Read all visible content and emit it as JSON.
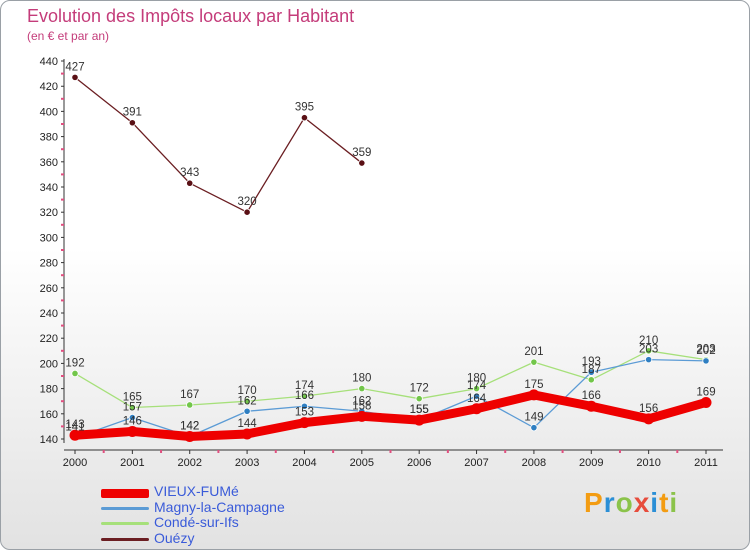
{
  "chart_data": {
    "type": "line",
    "title": "Evolution des Impôts locaux par Habitant",
    "subtitle": "(en € et par an)",
    "xlabel": "",
    "ylabel": "",
    "ylim": [
      140,
      440
    ],
    "yticks": [
      140,
      160,
      180,
      200,
      220,
      240,
      260,
      280,
      300,
      320,
      340,
      360,
      380,
      400,
      420,
      440
    ],
    "categories": [
      "2000",
      "2001",
      "2002",
      "2003",
      "2004",
      "2005",
      "2006",
      "2007",
      "2008",
      "2009",
      "2010",
      "2011"
    ],
    "series": [
      {
        "name": "VIEUX-FUMé",
        "color": "#ee0000",
        "values": [
          143,
          146,
          142,
          144,
          153,
          158,
          155,
          164,
          175,
          166,
          156,
          169
        ]
      },
      {
        "name": "Magny-la-Campagne",
        "color": "#5b9bd5",
        "values": [
          141,
          157,
          142,
          162,
          166,
          162,
          155,
          174,
          149,
          193,
          203,
          202
        ]
      },
      {
        "name": "Condé-sur-Ifs",
        "color": "#a6e07a",
        "values": [
          192,
          165,
          167,
          170,
          174,
          180,
          172,
          180,
          201,
          187,
          210,
          203
        ]
      },
      {
        "name": "Ouézy",
        "color": "#6b1e22",
        "values": [
          427,
          391,
          343,
          320,
          395,
          359,
          null,
          null,
          null,
          null,
          null,
          null
        ]
      }
    ],
    "data_labels": [
      [
        "143",
        "146",
        "142",
        "144",
        "153",
        "158",
        "155",
        "164",
        "175",
        "166",
        "156",
        "169"
      ],
      [
        "141",
        "157",
        "142",
        "162",
        "166",
        "162",
        "155",
        "174",
        "149",
        "193",
        "203",
        "202"
      ],
      [
        "192",
        "165",
        "167",
        "170",
        "174",
        "180",
        "172",
        "180",
        "201",
        "187",
        "210",
        "203"
      ],
      [
        "427",
        "391",
        "343",
        "320",
        "395",
        "359"
      ]
    ]
  },
  "brand": {
    "name": "Proxiti"
  }
}
